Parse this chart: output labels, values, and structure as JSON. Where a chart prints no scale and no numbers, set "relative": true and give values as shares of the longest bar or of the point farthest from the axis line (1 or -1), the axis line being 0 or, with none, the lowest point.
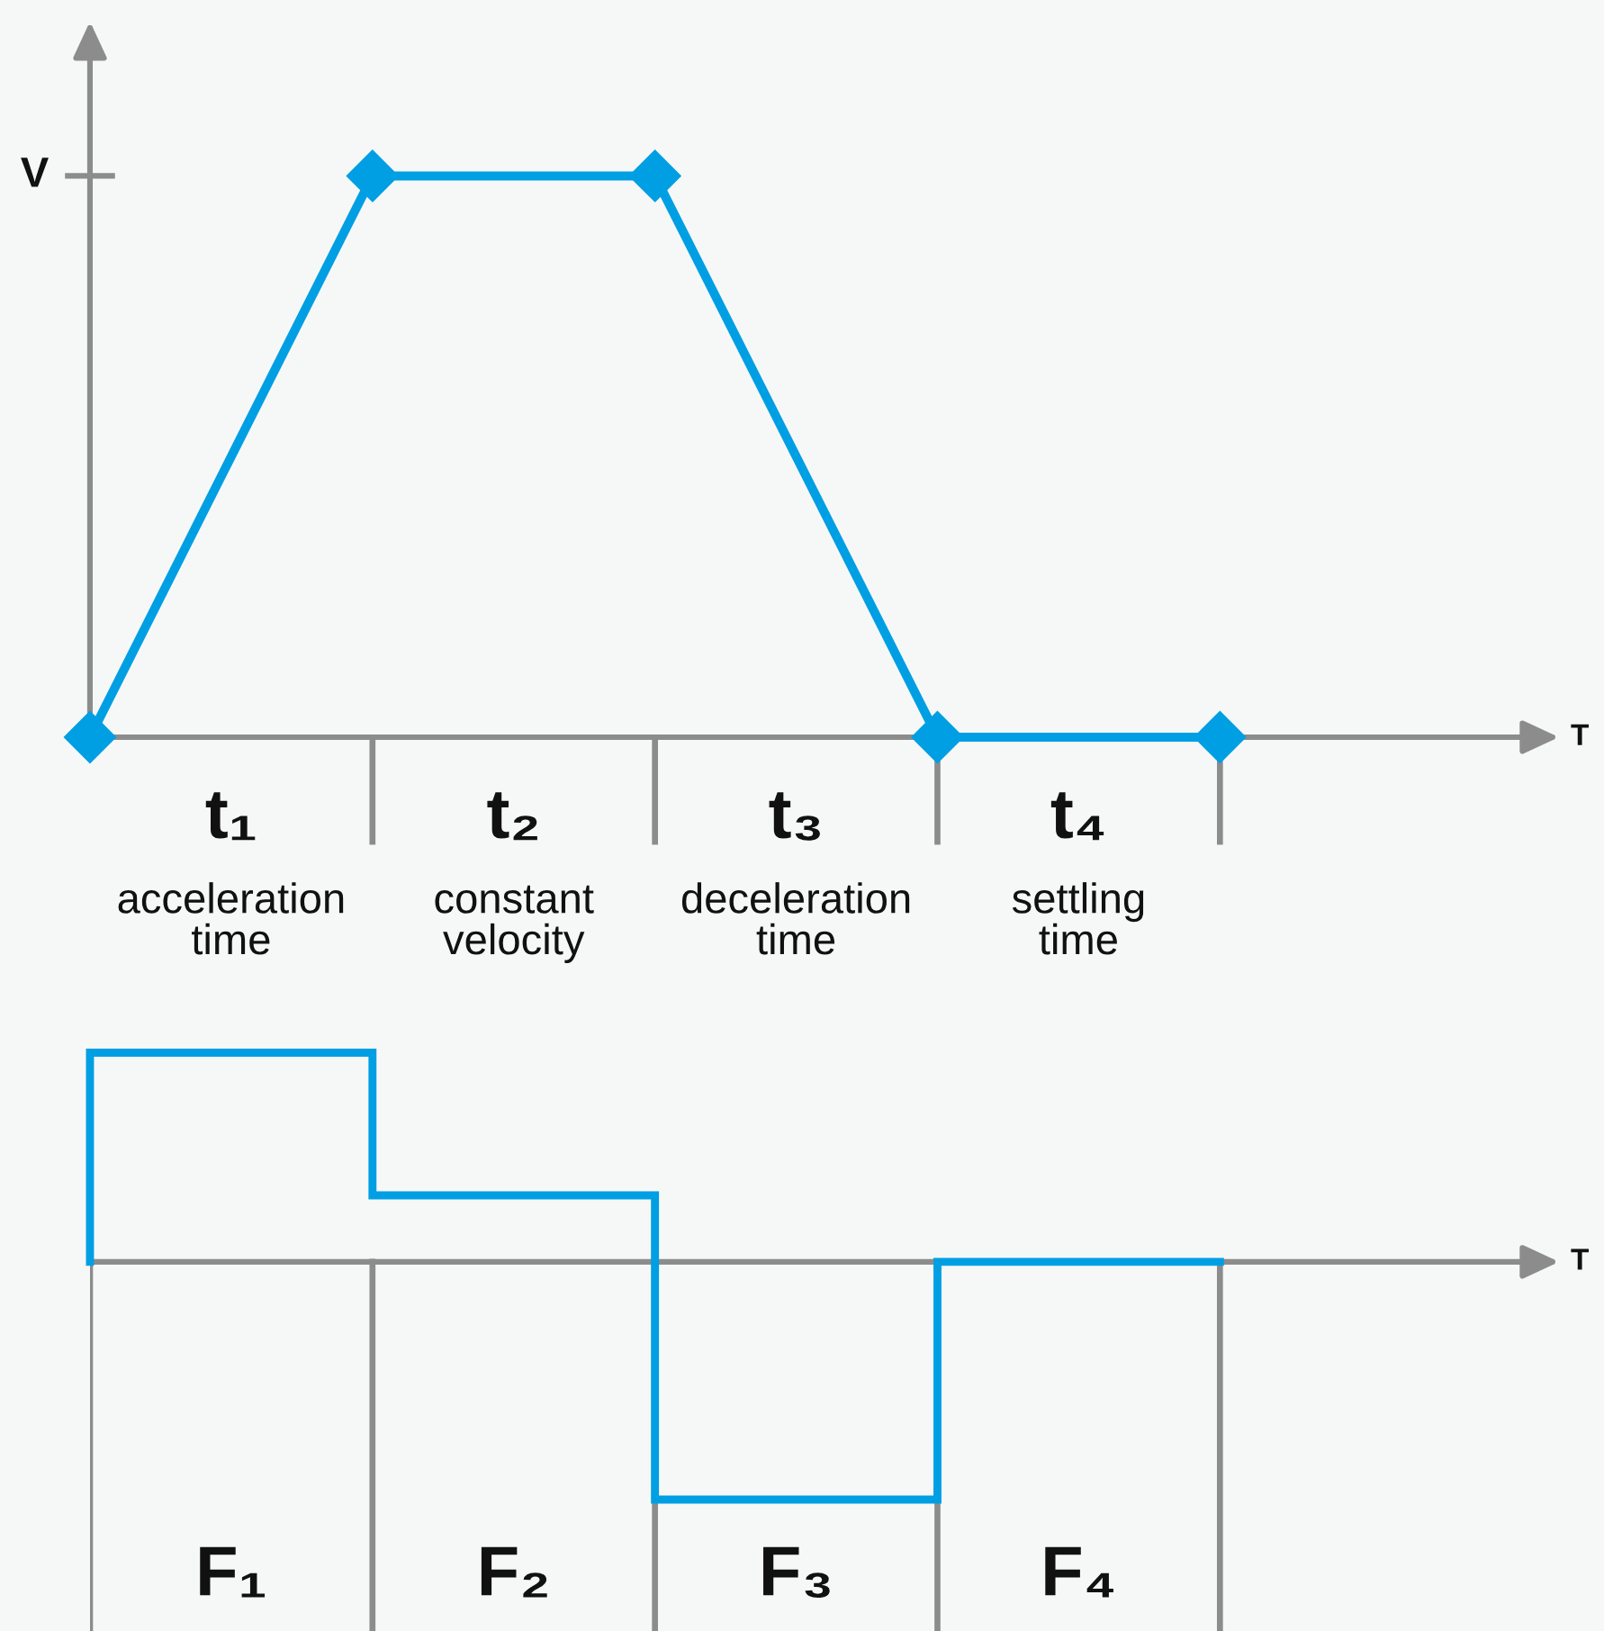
{
  "chart_data": [
    {
      "type": "line",
      "relative": true,
      "categories": [
        null,
        null,
        null,
        null,
        null
      ],
      "values": [
        0,
        1,
        1,
        0,
        0
      ],
      "color": "#009fe3",
      "marker": "diamond",
      "xlabel": "T",
      "ylabel": "V",
      "annotations": [
        "t₁\nacceleration\ntime",
        "t₂\nconstant\nvelocity",
        "t₃\ndeceleration\ntime",
        "t₄\nsettling\ntime"
      ]
    },
    {
      "type": "step",
      "relative": true,
      "categories": [
        null,
        null,
        null,
        null,
        null
      ],
      "values": [
        0,
        0.88,
        0.28,
        -1,
        0
      ],
      "color": "#009fe3",
      "xlabel": "T",
      "grid": "x",
      "annotations": [
        "F₁",
        "F₂",
        "F₃",
        "F₄"
      ]
    }
  ]
}
